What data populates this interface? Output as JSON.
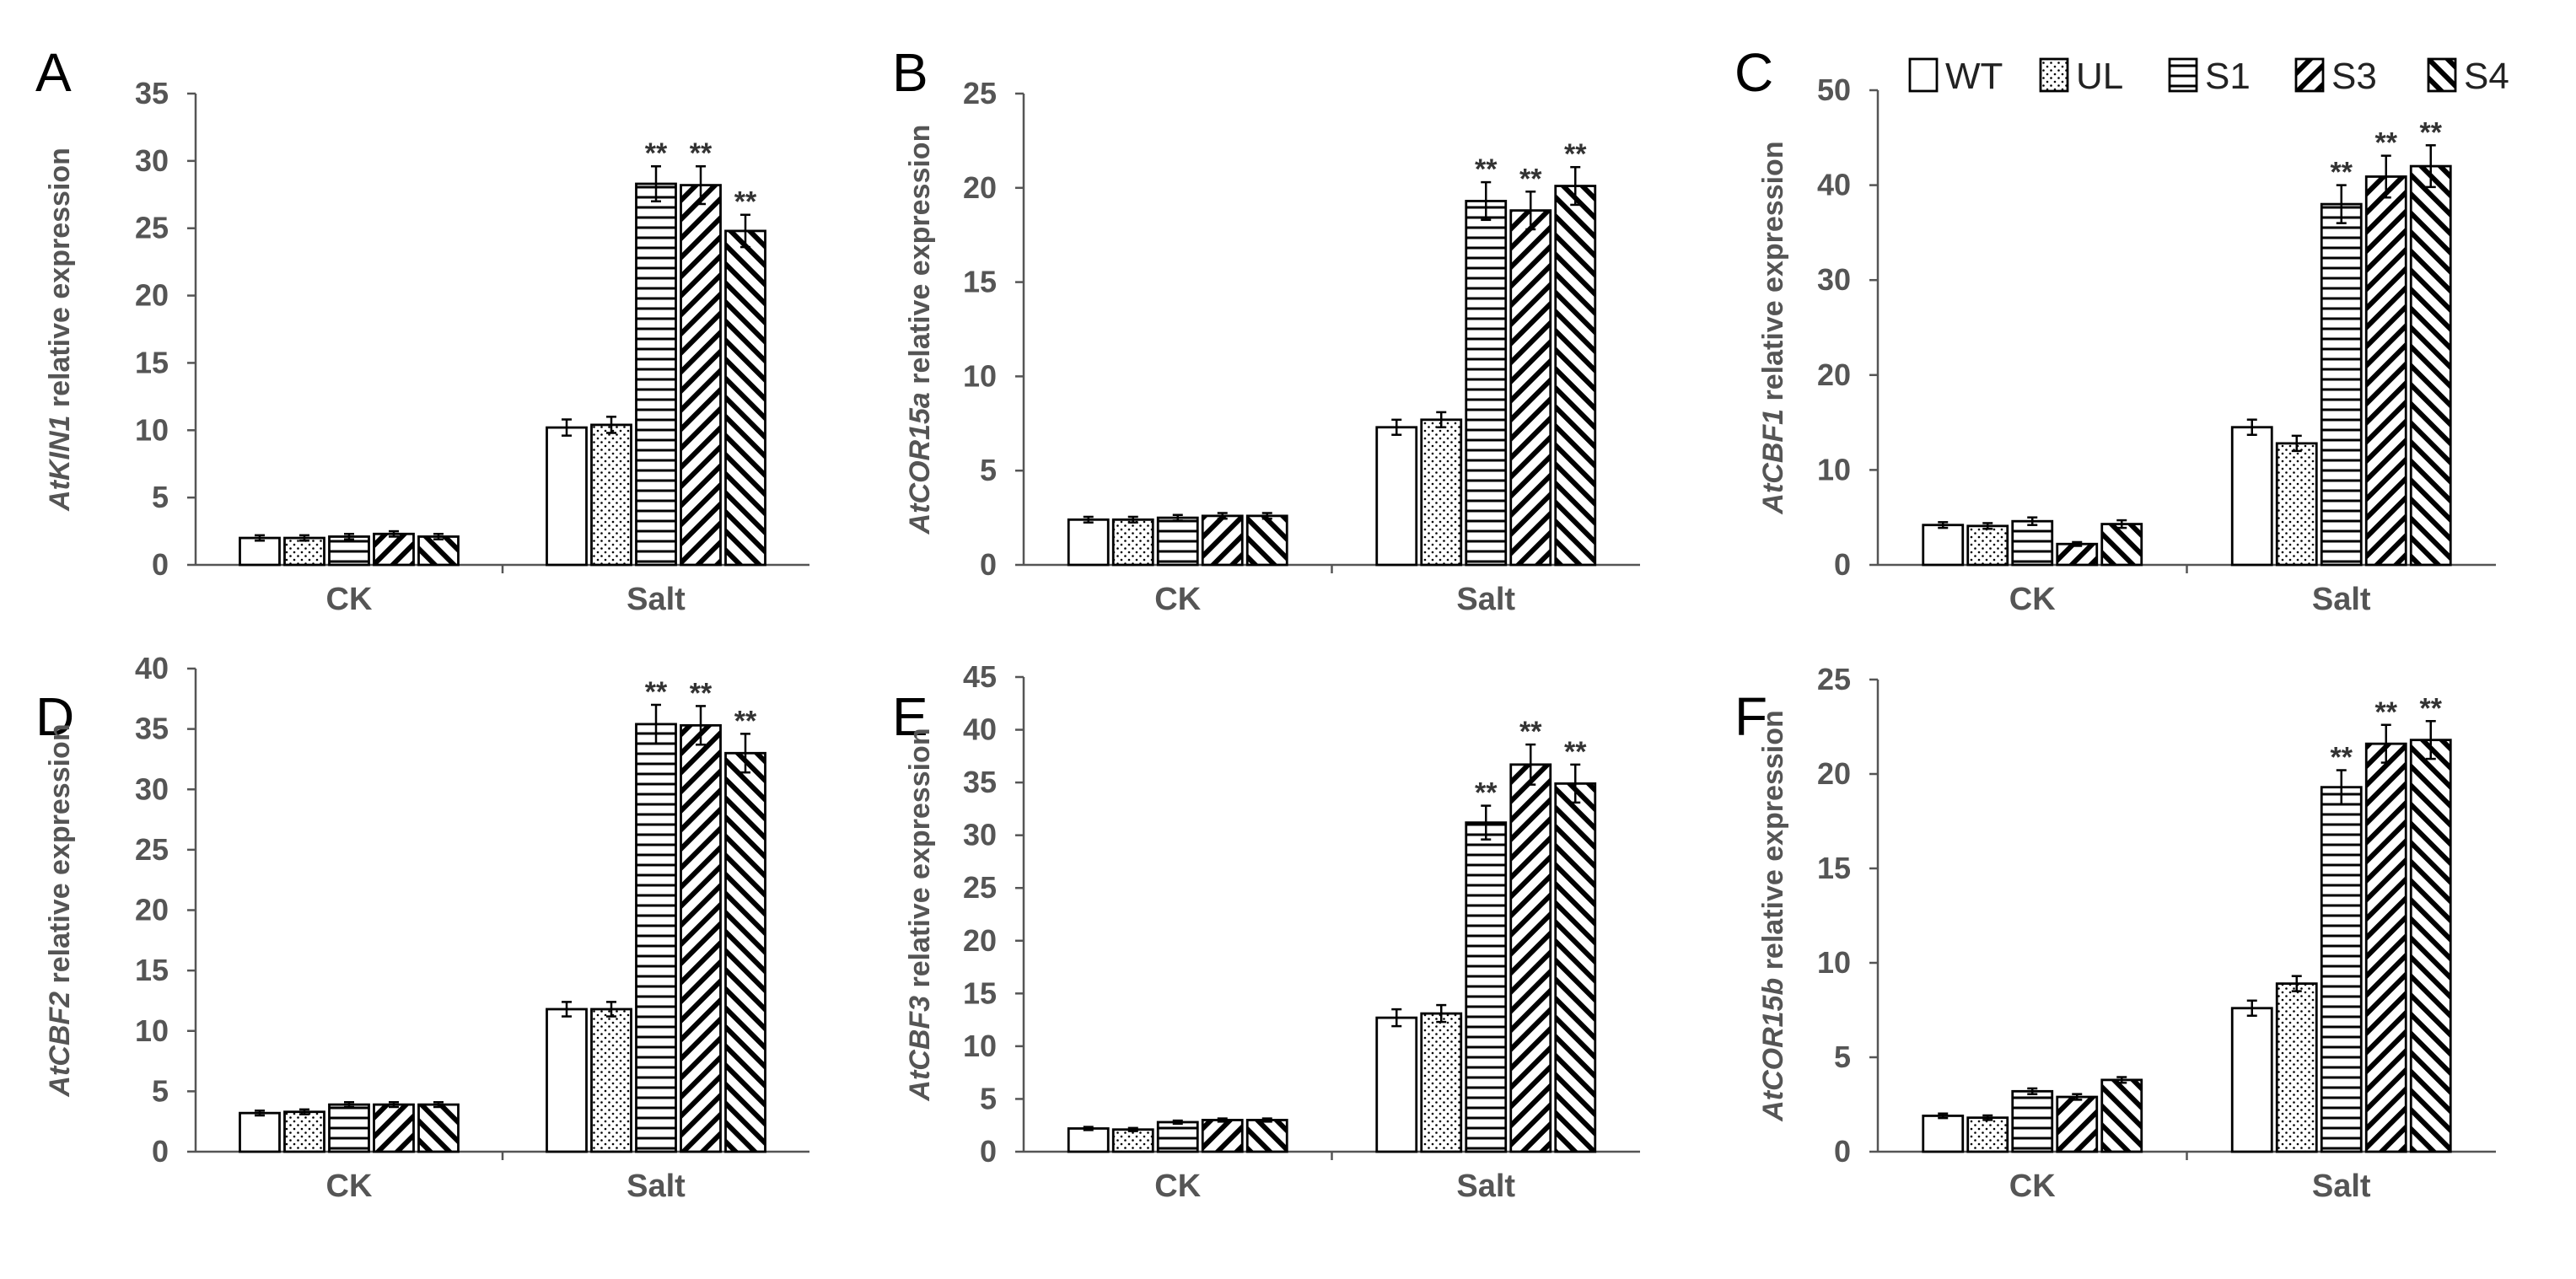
{
  "legend": {
    "series": [
      "WT",
      "UL",
      "S1",
      "S3",
      "S4"
    ],
    "patterns": [
      "blank",
      "dots",
      "horizontal",
      "backdiag",
      "fwddiag"
    ]
  },
  "chart_data": [
    {
      "type": "bar",
      "panel": "A",
      "gene": "AtKIN1",
      "ylabel_suffix": " relative expression",
      "ylim": [
        0,
        35
      ],
      "yticks": [
        0,
        5,
        10,
        15,
        20,
        25,
        30,
        35
      ],
      "categories": [
        "CK",
        "Salt"
      ],
      "series": [
        {
          "name": "WT",
          "values": [
            2.0,
            10.2
          ],
          "errors": [
            0.2,
            0.6
          ]
        },
        {
          "name": "UL",
          "values": [
            2.0,
            10.4
          ],
          "errors": [
            0.2,
            0.6
          ]
        },
        {
          "name": "S1",
          "values": [
            2.1,
            28.3
          ],
          "errors": [
            0.2,
            1.3
          ]
        },
        {
          "name": "S3",
          "values": [
            2.3,
            28.2
          ],
          "errors": [
            0.2,
            1.4
          ]
        },
        {
          "name": "S4",
          "values": [
            2.1,
            24.8
          ],
          "errors": [
            0.2,
            1.2
          ]
        }
      ],
      "significance": [
        [
          "",
          ""
        ],
        [
          "",
          ""
        ],
        [
          "",
          "**"
        ],
        [
          "",
          "**"
        ],
        [
          "",
          "**"
        ]
      ]
    },
    {
      "type": "bar",
      "panel": "B",
      "gene": "AtCOR15a",
      "ylabel_suffix": " relative expression",
      "ylim": [
        0,
        25
      ],
      "yticks": [
        0,
        5,
        10,
        15,
        20,
        25
      ],
      "categories": [
        "CK",
        "Salt"
      ],
      "series": [
        {
          "name": "WT",
          "values": [
            2.4,
            7.3
          ],
          "errors": [
            0.15,
            0.4
          ]
        },
        {
          "name": "UL",
          "values": [
            2.4,
            7.7
          ],
          "errors": [
            0.15,
            0.4
          ]
        },
        {
          "name": "S1",
          "values": [
            2.5,
            19.3
          ],
          "errors": [
            0.15,
            1.0
          ]
        },
        {
          "name": "S3",
          "values": [
            2.6,
            18.8
          ],
          "errors": [
            0.15,
            1.0
          ]
        },
        {
          "name": "S4",
          "values": [
            2.6,
            20.1
          ],
          "errors": [
            0.15,
            1.0
          ]
        }
      ],
      "significance": [
        [
          "",
          ""
        ],
        [
          "",
          ""
        ],
        [
          "",
          "**"
        ],
        [
          "",
          "**"
        ],
        [
          "",
          "**"
        ]
      ]
    },
    {
      "type": "bar",
      "panel": "C",
      "gene": "AtCBF1",
      "ylabel_suffix": " relative expression",
      "ylim": [
        0,
        50
      ],
      "yticks": [
        0,
        10,
        20,
        30,
        40,
        50
      ],
      "categories": [
        "CK",
        "Salt"
      ],
      "series": [
        {
          "name": "WT",
          "values": [
            4.2,
            14.5
          ],
          "errors": [
            0.3,
            0.8
          ]
        },
        {
          "name": "UL",
          "values": [
            4.1,
            12.8
          ],
          "errors": [
            0.3,
            0.8
          ]
        },
        {
          "name": "S1",
          "values": [
            4.6,
            38.0
          ],
          "errors": [
            0.4,
            2.0
          ]
        },
        {
          "name": "S3",
          "values": [
            2.2,
            40.9
          ],
          "errors": [
            0.2,
            2.2
          ]
        },
        {
          "name": "S4",
          "values": [
            4.3,
            42.0
          ],
          "errors": [
            0.4,
            2.2
          ]
        }
      ],
      "significance": [
        [
          "",
          ""
        ],
        [
          "",
          ""
        ],
        [
          "",
          "**"
        ],
        [
          "",
          "**"
        ],
        [
          "",
          "**"
        ]
      ]
    },
    {
      "type": "bar",
      "panel": "D",
      "gene": "AtCBF2",
      "ylabel_suffix": " relative expression",
      "ylim": [
        0,
        40
      ],
      "yticks": [
        0,
        5,
        10,
        15,
        20,
        25,
        30,
        35,
        40
      ],
      "categories": [
        "CK",
        "Salt"
      ],
      "series": [
        {
          "name": "WT",
          "values": [
            3.2,
            11.8
          ],
          "errors": [
            0.2,
            0.6
          ]
        },
        {
          "name": "UL",
          "values": [
            3.3,
            11.8
          ],
          "errors": [
            0.2,
            0.6
          ]
        },
        {
          "name": "S1",
          "values": [
            3.9,
            35.4
          ],
          "errors": [
            0.2,
            1.6
          ]
        },
        {
          "name": "S3",
          "values": [
            3.9,
            35.3
          ],
          "errors": [
            0.2,
            1.6
          ]
        },
        {
          "name": "S4",
          "values": [
            3.9,
            33.0
          ],
          "errors": [
            0.2,
            1.6
          ]
        }
      ],
      "significance": [
        [
          "",
          ""
        ],
        [
          "",
          ""
        ],
        [
          "",
          "**"
        ],
        [
          "",
          "**"
        ],
        [
          "",
          "**"
        ]
      ]
    },
    {
      "type": "bar",
      "panel": "E",
      "gene": "AtCBF3",
      "ylabel_suffix": " relative expression",
      "ylim": [
        0,
        45
      ],
      "yticks": [
        0,
        5,
        10,
        15,
        20,
        25,
        30,
        35,
        40,
        45
      ],
      "categories": [
        "CK",
        "Salt"
      ],
      "series": [
        {
          "name": "WT",
          "values": [
            2.2,
            12.7
          ],
          "errors": [
            0.15,
            0.8
          ]
        },
        {
          "name": "UL",
          "values": [
            2.1,
            13.1
          ],
          "errors": [
            0.15,
            0.8
          ]
        },
        {
          "name": "S1",
          "values": [
            2.8,
            31.2
          ],
          "errors": [
            0.15,
            1.6
          ]
        },
        {
          "name": "S3",
          "values": [
            3.0,
            36.7
          ],
          "errors": [
            0.15,
            1.9
          ]
        },
        {
          "name": "S4",
          "values": [
            3.0,
            34.9
          ],
          "errors": [
            0.15,
            1.8
          ]
        }
      ],
      "significance": [
        [
          "",
          ""
        ],
        [
          "",
          ""
        ],
        [
          "",
          "**"
        ],
        [
          "",
          "**"
        ],
        [
          "",
          "**"
        ]
      ]
    },
    {
      "type": "bar",
      "panel": "F",
      "gene": "AtCOR15b",
      "ylabel_suffix": " relative expression",
      "ylim": [
        0,
        25
      ],
      "yticks": [
        0,
        5,
        10,
        15,
        20,
        25
      ],
      "categories": [
        "CK",
        "Salt"
      ],
      "series": [
        {
          "name": "WT",
          "values": [
            1.9,
            7.6
          ],
          "errors": [
            0.12,
            0.4
          ]
        },
        {
          "name": "UL",
          "values": [
            1.8,
            8.9
          ],
          "errors": [
            0.12,
            0.4
          ]
        },
        {
          "name": "S1",
          "values": [
            3.2,
            19.3
          ],
          "errors": [
            0.15,
            0.9
          ]
        },
        {
          "name": "S3",
          "values": [
            2.9,
            21.6
          ],
          "errors": [
            0.15,
            1.0
          ]
        },
        {
          "name": "S4",
          "values": [
            3.8,
            21.8
          ],
          "errors": [
            0.15,
            1.0
          ]
        }
      ],
      "significance": [
        [
          "",
          ""
        ],
        [
          "",
          ""
        ],
        [
          "",
          "**"
        ],
        [
          "",
          "**"
        ],
        [
          "",
          "**"
        ]
      ]
    }
  ]
}
